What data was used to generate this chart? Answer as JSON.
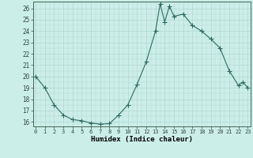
{
  "x": [
    0,
    1,
    2,
    3,
    4,
    5,
    6,
    7,
    8,
    9,
    10,
    11,
    12,
    13,
    13.5,
    14,
    14.5,
    15,
    16,
    17,
    18,
    19,
    20,
    21,
    22,
    22.5,
    23
  ],
  "y": [
    20.0,
    19.0,
    17.5,
    16.6,
    16.2,
    16.1,
    15.9,
    15.8,
    15.85,
    16.6,
    17.5,
    19.3,
    21.3,
    24.0,
    26.4,
    24.8,
    26.2,
    25.3,
    25.5,
    24.5,
    24.0,
    23.3,
    22.5,
    20.5,
    19.2,
    19.5,
    19.0
  ],
  "line_color": "#2d6b5e",
  "marker": "+",
  "marker_size": 4,
  "bg_color": "#cceee8",
  "grid_color": "#b0d8d0",
  "xlabel": "Humidex (Indice chaleur)",
  "ylabel_ticks": [
    16,
    17,
    18,
    19,
    20,
    21,
    22,
    23,
    24,
    25,
    26
  ],
  "xticks": [
    0,
    1,
    2,
    3,
    4,
    5,
    6,
    7,
    8,
    9,
    10,
    11,
    12,
    13,
    14,
    15,
    16,
    17,
    18,
    19,
    20,
    21,
    22,
    23
  ],
  "xlim": [
    -0.3,
    23.3
  ],
  "ylim": [
    15.6,
    26.6
  ]
}
